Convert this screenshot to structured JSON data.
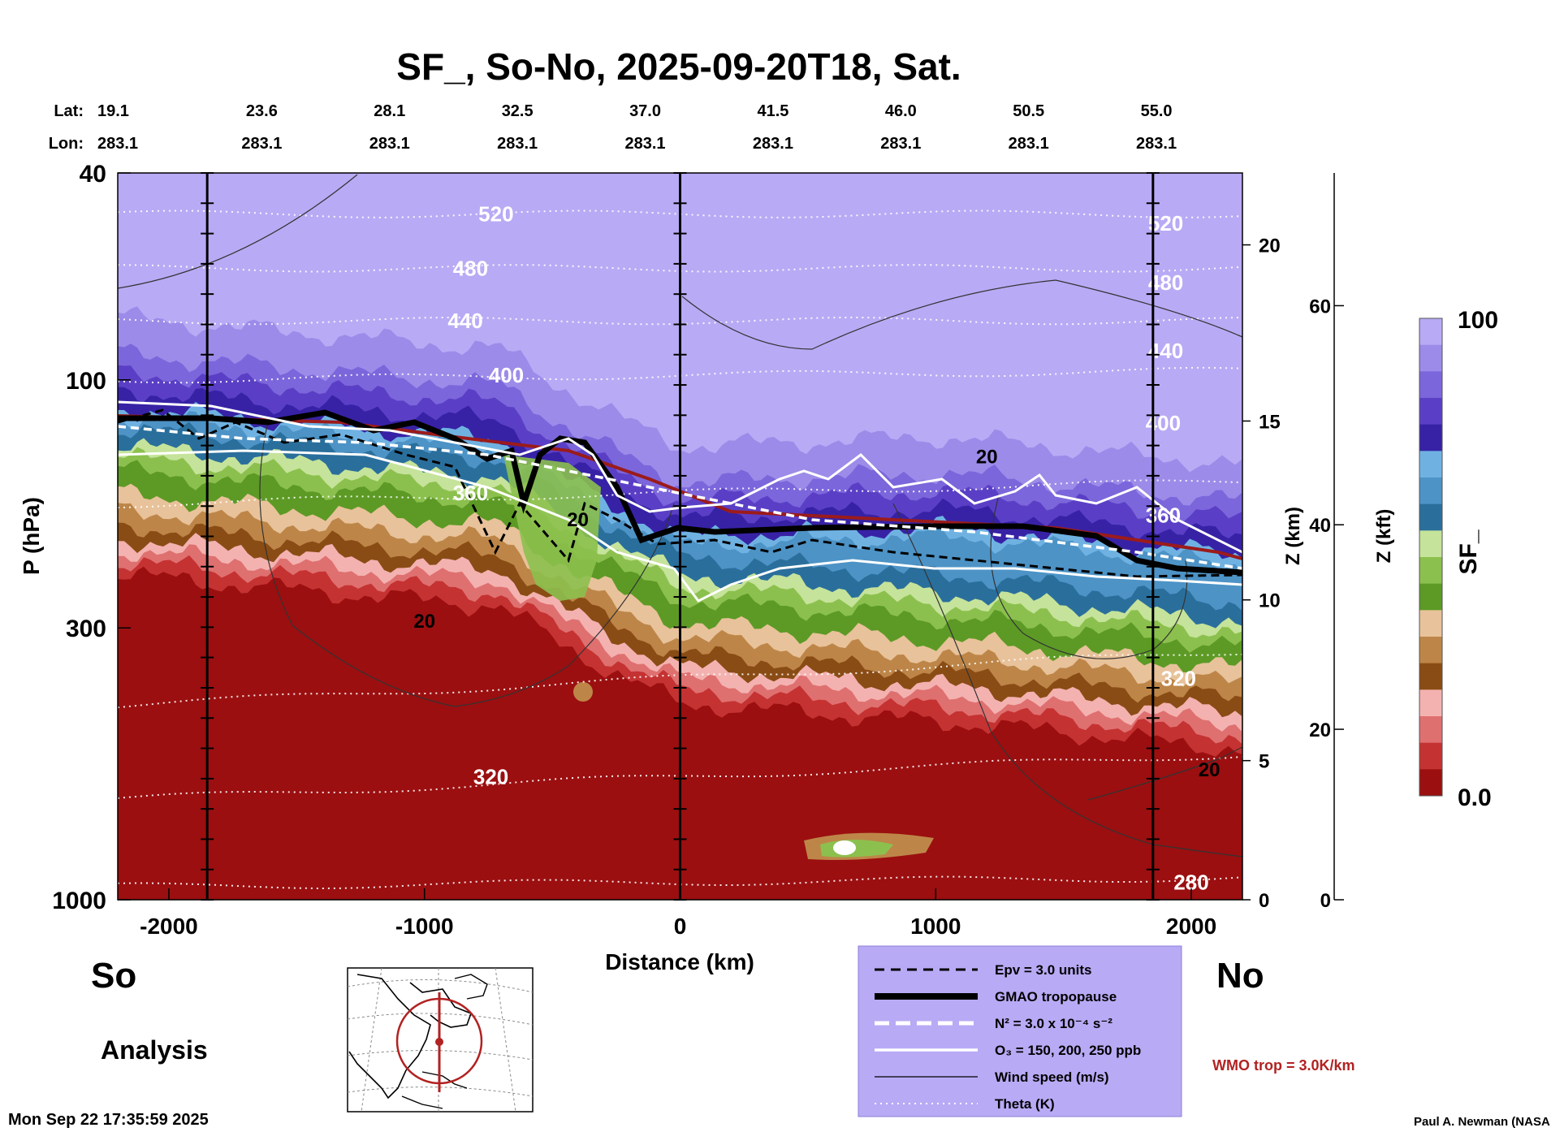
{
  "chart_data": {
    "type": "heatmap",
    "title": "SF_, So-No, 2025-09-20T18, Sat.",
    "xlabel": "Distance (km)",
    "ylabel": "P (hPa)",
    "y2label": "Z (km)",
    "y3label": "Z (kft)",
    "colorbar_label": "SF_",
    "xlim": [
      -2200,
      2200
    ],
    "ylim": [
      1000,
      40
    ],
    "y_scale": "log",
    "x_ticks": [
      {
        "v": -2000,
        "label": "-2000"
      },
      {
        "v": -1000,
        "label": "-1000"
      },
      {
        "v": 0,
        "label": "0"
      },
      {
        "v": 1000,
        "label": "1000"
      },
      {
        "v": 2000,
        "label": "2000"
      }
    ],
    "y_ticks": [
      {
        "v": 40,
        "label": "40"
      },
      {
        "v": 100,
        "label": "100"
      },
      {
        "v": 300,
        "label": "300"
      },
      {
        "v": 1000,
        "label": "1000"
      }
    ],
    "z_km_ticks": [
      {
        "p": 1000,
        "label": "0"
      },
      {
        "p": 540,
        "label": "5"
      },
      {
        "p": 265,
        "label": "10"
      },
      {
        "p": 120,
        "label": "15"
      },
      {
        "p": 55,
        "label": "20"
      }
    ],
    "z_kft_ticks": [
      {
        "p": 1000,
        "label": "0"
      },
      {
        "p": 470,
        "label": "20"
      },
      {
        "p": 190,
        "label": "40"
      },
      {
        "p": 72,
        "label": "60"
      }
    ],
    "lat_label": "Lat:",
    "lon_label": "Lon:",
    "lat_lon": [
      {
        "x": -2200,
        "lat": "19.1",
        "lon": "283.1"
      },
      {
        "x": -1700,
        "lat": "23.6",
        "lon": "283.1"
      },
      {
        "x": -1200,
        "lat": "28.1",
        "lon": "283.1"
      },
      {
        "x": -700,
        "lat": "32.5",
        "lon": "283.1"
      },
      {
        "x": -200,
        "lat": "37.0",
        "lon": "283.1"
      },
      {
        "x": 300,
        "lat": "41.5",
        "lon": "283.1"
      },
      {
        "x": 800,
        "lat": "46.0",
        "lon": "283.1"
      },
      {
        "x": 1300,
        "lat": "50.5",
        "lon": "283.1"
      },
      {
        "x": 1800,
        "lat": "55.0",
        "lon": "283.1"
      }
    ],
    "colorbar": {
      "min_label": "0.0",
      "max_label": "100",
      "range": [
        0,
        100
      ]
    },
    "color_levels": [
      {
        "level": 100,
        "color": "#b9aaf5"
      },
      {
        "level": 95,
        "color": "#9d8be9"
      },
      {
        "level": 90,
        "color": "#7c66db"
      },
      {
        "level": 85,
        "color": "#5a3fc6"
      },
      {
        "level": 80,
        "color": "#3722a6"
      },
      {
        "level": 75,
        "color": "#6fb2e2"
      },
      {
        "level": 70,
        "color": "#4d93c6"
      },
      {
        "level": 65,
        "color": "#2a6f9c"
      },
      {
        "level": 60,
        "color": "#c5e39a"
      },
      {
        "level": 55,
        "color": "#8cc04e"
      },
      {
        "level": 50,
        "color": "#5c9a25"
      },
      {
        "level": 45,
        "color": "#e8c29a"
      },
      {
        "level": 40,
        "color": "#bd8648"
      },
      {
        "level": 35,
        "color": "#8a4c15"
      },
      {
        "level": 30,
        "color": "#f3b2b0"
      },
      {
        "level": 25,
        "color": "#df7070"
      },
      {
        "level": 20,
        "color": "#c53232"
      },
      {
        "level": 0,
        "color": "#9b0f10"
      }
    ],
    "theta_labels": [
      {
        "x": -720,
        "p": 48,
        "label": "520"
      },
      {
        "x": -820,
        "p": 61,
        "label": "480"
      },
      {
        "x": -840,
        "p": 77,
        "label": "440"
      },
      {
        "x": -680,
        "p": 98,
        "label": "400"
      },
      {
        "x": -820,
        "p": 165,
        "label": "360"
      },
      {
        "x": 1900,
        "p": 50,
        "label": "520"
      },
      {
        "x": 1900,
        "p": 65,
        "label": "480"
      },
      {
        "x": 1900,
        "p": 88,
        "label": "440"
      },
      {
        "x": 1890,
        "p": 121,
        "label": "400"
      },
      {
        "x": 1890,
        "p": 182,
        "label": "360"
      },
      {
        "x": 1950,
        "p": 375,
        "label": "320"
      },
      {
        "x": -740,
        "p": 580,
        "label": "320"
      },
      {
        "x": 2000,
        "p": 925,
        "label": "280"
      }
    ],
    "wind_labels": [
      {
        "x": -1000,
        "p": 290,
        "label": "20"
      },
      {
        "x": -400,
        "p": 185,
        "label": "20"
      },
      {
        "x": 1200,
        "p": 140,
        "label": "20"
      },
      {
        "x": 2070,
        "p": 560,
        "label": "20"
      }
    ],
    "markers": {
      "left": "So",
      "right": "No",
      "mode": "Analysis"
    },
    "legend": {
      "items": [
        {
          "label": "Epv = 3.0 units",
          "style": "dashed-black"
        },
        {
          "label": "GMAO tropopause",
          "style": "thick-black"
        },
        {
          "label": "N² = 3.0 x 10⁻⁴ s⁻²",
          "style": "dashed-white"
        },
        {
          "label": "O₃ = 150, 200, 250 ppb",
          "style": "solid-white"
        },
        {
          "label": "Wind speed (m/s)",
          "style": "thin-black"
        },
        {
          "label": "Theta (K)",
          "style": "dotted-white"
        }
      ],
      "background": "#b9aaf5",
      "placement": "bottom-center"
    },
    "wmo_text": "WMO trop = 3.0K/km",
    "vertical_lines_x": [
      -1850,
      0,
      1850
    ],
    "grid": false
  },
  "footer": {
    "timestamp": "Mon Sep 22 17:35:59 2025",
    "credit": "Paul A. Newman (NASA"
  }
}
